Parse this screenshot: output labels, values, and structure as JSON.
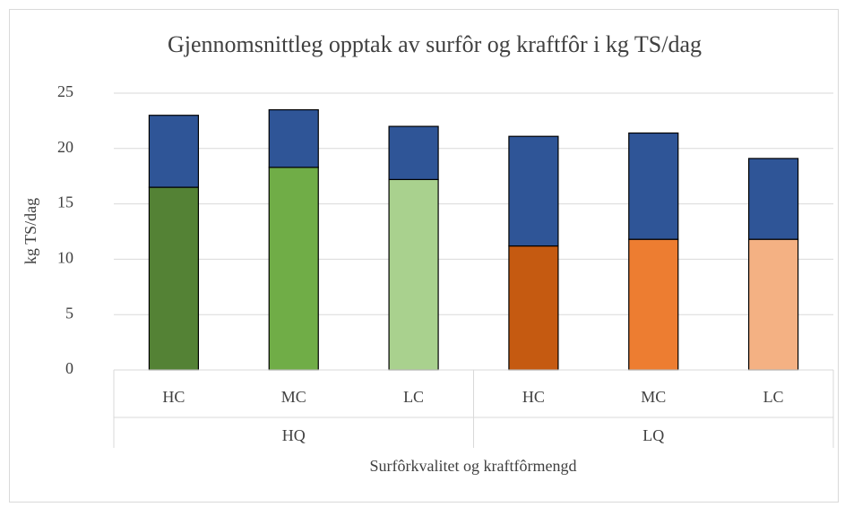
{
  "chart_data": {
    "type": "stacked_bar",
    "title": "Gjennomsnittleg opptak av surfôr og kraftfôr i kg TS/dag",
    "y_label": "kg TS/dag",
    "x_label": "Surfôrkvalitet og kraftfôrmengd",
    "categories": [
      "HC",
      "MC",
      "LC",
      "HC",
      "MC",
      "LC"
    ],
    "groups": [
      "HQ",
      "LQ"
    ],
    "series": [
      {
        "colors": [
          "#548235",
          "#70ad47",
          "#a9d18e",
          "#c55a11",
          "#ed7d31",
          "#f4b183"
        ],
        "values": [
          16.5,
          18.3,
          17.2,
          11.2,
          11.8,
          11.8
        ]
      },
      {
        "color": "#2f5597",
        "values": [
          6.5,
          5.2,
          4.8,
          9.9,
          9.6,
          7.3
        ]
      }
    ],
    "ylim": [
      0,
      25
    ],
    "yticks": [
      0,
      5,
      10,
      15,
      20,
      25
    ],
    "grid": true
  }
}
